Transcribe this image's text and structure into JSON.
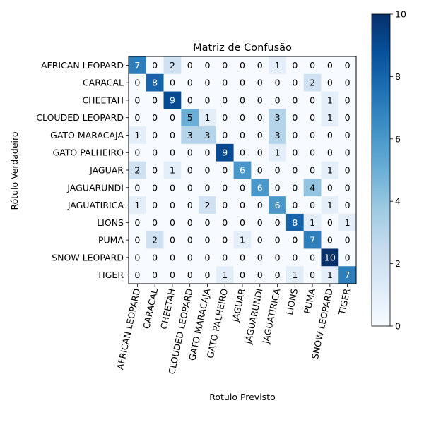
{
  "chart_data": {
    "type": "heatmap",
    "title": "Matriz de Confusão",
    "xlabel": "Rotulo Previsto",
    "ylabel": "Rótulo Verdadeiro",
    "labels": [
      "AFRICAN LEOPARD",
      "CARACAL",
      "CHEETAH",
      "CLOUDED LEOPARD",
      "GATO MARACAJA",
      "GATO PALHEIRO",
      "JAGUAR",
      "JAGUARUNDI",
      "JAGUATIRICA",
      "LIONS",
      "PUMA",
      "SNOW LEOPARD",
      "TIGER"
    ],
    "matrix": [
      [
        7,
        0,
        2,
        0,
        0,
        0,
        0,
        0,
        1,
        0,
        0,
        0,
        0
      ],
      [
        0,
        8,
        0,
        0,
        0,
        0,
        0,
        0,
        0,
        0,
        2,
        0,
        0
      ],
      [
        0,
        0,
        9,
        0,
        0,
        0,
        0,
        0,
        0,
        0,
        0,
        1,
        0
      ],
      [
        0,
        0,
        0,
        5,
        1,
        0,
        0,
        0,
        3,
        0,
        0,
        1,
        0
      ],
      [
        1,
        0,
        0,
        3,
        3,
        0,
        0,
        0,
        3,
        0,
        0,
        0,
        0
      ],
      [
        0,
        0,
        0,
        0,
        0,
        9,
        0,
        0,
        1,
        0,
        0,
        0,
        0
      ],
      [
        2,
        0,
        1,
        0,
        0,
        0,
        6,
        0,
        0,
        0,
        0,
        1,
        0
      ],
      [
        0,
        0,
        0,
        0,
        0,
        0,
        0,
        6,
        0,
        0,
        4,
        0,
        0
      ],
      [
        1,
        0,
        0,
        0,
        2,
        0,
        0,
        0,
        6,
        0,
        0,
        1,
        0
      ],
      [
        0,
        0,
        0,
        0,
        0,
        0,
        0,
        0,
        0,
        8,
        1,
        0,
        1
      ],
      [
        0,
        2,
        0,
        0,
        0,
        0,
        1,
        0,
        0,
        0,
        7,
        0,
        0
      ],
      [
        0,
        0,
        0,
        0,
        0,
        0,
        0,
        0,
        0,
        0,
        0,
        10,
        0
      ],
      [
        0,
        0,
        0,
        0,
        0,
        1,
        0,
        0,
        0,
        1,
        0,
        1,
        7
      ]
    ],
    "colormap": "Blues",
    "vmin": 0,
    "vmax": 10,
    "colorbar_ticks": [
      0,
      2,
      4,
      6,
      8,
      10
    ],
    "text_color_light": "#ffffff",
    "text_color_dark": "#000000"
  }
}
